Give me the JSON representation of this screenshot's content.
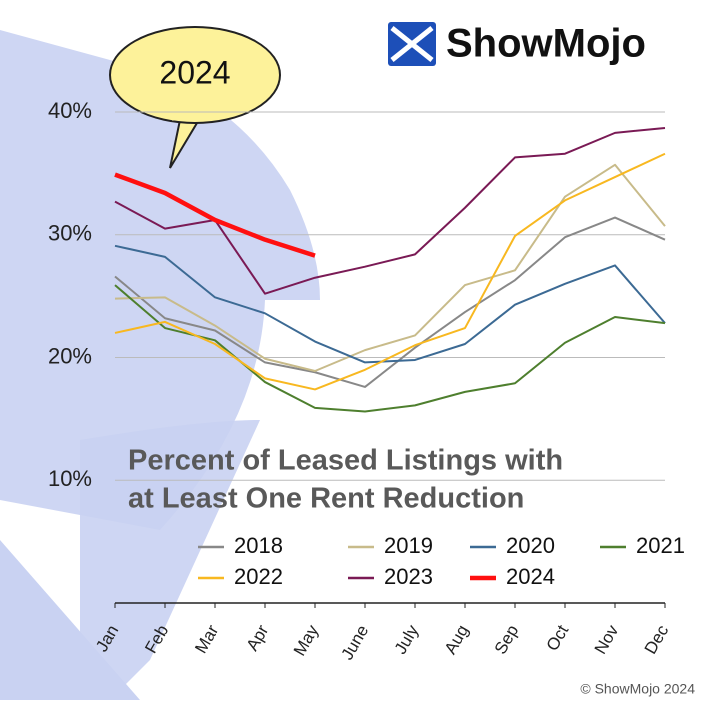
{
  "chart_data": {
    "type": "line",
    "title": [
      "Percent of Leased Listings with",
      "at Least One Rent Reduction"
    ],
    "annotation": "2024",
    "logo": "ShowMojo",
    "credit": "© ShowMojo 2024",
    "categories": [
      "Jan",
      "Feb",
      "Mar",
      "Apr",
      "May",
      "June",
      "July",
      "Aug",
      "Sep",
      "Oct",
      "Nov",
      "Dec"
    ],
    "ylim": [
      0,
      40
    ],
    "yticks": [
      {
        "value": 10,
        "label": "10%"
      },
      {
        "value": 20,
        "label": "20%"
      },
      {
        "value": 30,
        "label": "30%"
      },
      {
        "value": 40,
        "label": "40%"
      }
    ],
    "grid": true,
    "series": [
      {
        "name": "2018",
        "color": "#888888",
        "values": [
          26.6,
          23.2,
          22.2,
          19.6,
          18.8,
          17.6,
          20.8,
          23.7,
          26.3,
          29.8,
          31.4,
          29.6
        ]
      },
      {
        "name": "2019",
        "color": "#c8bb8a",
        "values": [
          24.8,
          24.9,
          22.6,
          19.9,
          18.9,
          20.6,
          21.8,
          25.9,
          27.1,
          33.1,
          35.7,
          30.7
        ]
      },
      {
        "name": "2020",
        "color": "#3c6a94",
        "values": [
          29.1,
          28.2,
          24.9,
          23.6,
          21.3,
          19.6,
          19.8,
          21.1,
          24.3,
          26.0,
          27.5,
          22.8
        ]
      },
      {
        "name": "2021",
        "color": "#4e7f2e",
        "values": [
          25.9,
          22.4,
          21.4,
          18.0,
          15.9,
          15.6,
          16.1,
          17.2,
          17.9,
          21.2,
          23.3,
          22.8
        ]
      },
      {
        "name": "2022",
        "color": "#f8b820",
        "values": [
          22.0,
          22.9,
          21.1,
          18.3,
          17.4,
          19.0,
          21.0,
          22.4,
          29.9,
          32.8,
          34.7,
          36.6
        ]
      },
      {
        "name": "2023",
        "color": "#7a1a55",
        "values": [
          32.7,
          30.5,
          31.2,
          25.2,
          26.5,
          27.4,
          28.4,
          32.2,
          36.3,
          36.6,
          38.3,
          38.7
        ]
      },
      {
        "name": "2024",
        "color": "#ff1010",
        "values": [
          34.9,
          33.4,
          31.2,
          29.6,
          28.3,
          null,
          null,
          null,
          null,
          null,
          null,
          null
        ]
      }
    ]
  }
}
